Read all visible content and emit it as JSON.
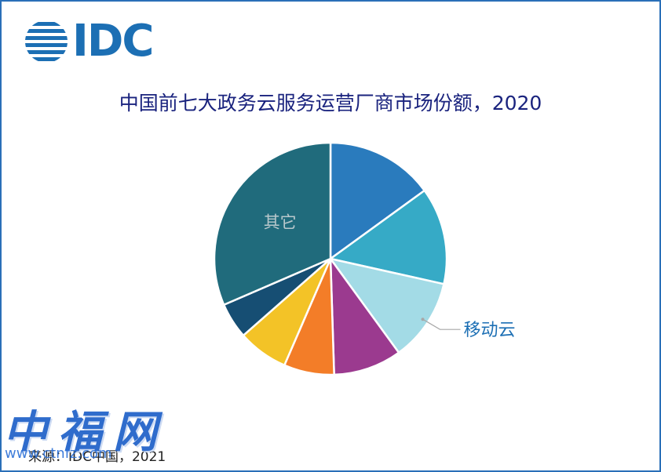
{
  "logo": {
    "text": "IDC"
  },
  "title": "中国前七大政务云服务运营厂商市场份额，2020",
  "source": "来源：IDC中国，2021",
  "watermark": {
    "text": "中福网",
    "url": "www.ctnfz.com"
  },
  "chart_data": {
    "type": "pie",
    "title": "中国前七大政务云服务运营厂商市场份额，2020",
    "start_angle_deg": 0,
    "direction": "clockwise",
    "slices": [
      {
        "label": "",
        "value": 15.0,
        "color": "#2a7bbd"
      },
      {
        "label": "",
        "value": 13.5,
        "color": "#36aac6"
      },
      {
        "label": "移动云",
        "value": 11.5,
        "color": "#a3dbe6"
      },
      {
        "label": "",
        "value": 9.5,
        "color": "#9b3a8f"
      },
      {
        "label": "",
        "value": 7.0,
        "color": "#f37d28"
      },
      {
        "label": "",
        "value": 7.0,
        "color": "#f3c327"
      },
      {
        "label": "",
        "value": 5.0,
        "color": "#164e73"
      },
      {
        "label": "其它",
        "value": 31.5,
        "color": "#206b7c"
      }
    ],
    "legend": "none"
  }
}
